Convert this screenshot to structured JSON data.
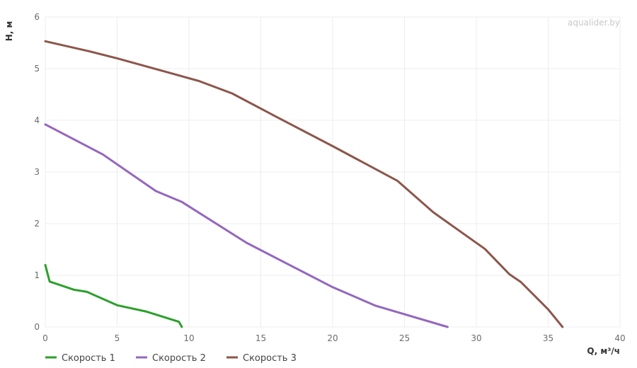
{
  "watermark": "aqualider.by",
  "chart_data": {
    "type": "line",
    "xlabel": "Q, м³/ч",
    "ylabel": "H, м",
    "xlim": [
      0,
      40
    ],
    "ylim": [
      0,
      6
    ],
    "xticks": [
      "0",
      "5",
      "10",
      "15",
      "20",
      "25",
      "30",
      "35",
      "40"
    ],
    "yticks": [
      "0",
      "1",
      "2",
      "3",
      "4",
      "5",
      "6"
    ],
    "grid": true,
    "legend": "bottom-left",
    "series": [
      {
        "name": "Скорость 1",
        "color": "#2ca02c",
        "points": [
          [
            0,
            1.2
          ],
          [
            0.3,
            0.88
          ],
          [
            2,
            0.72
          ],
          [
            2.9,
            0.68
          ],
          [
            5,
            0.42
          ],
          [
            7,
            0.3
          ],
          [
            9.3,
            0.1
          ],
          [
            9.5,
            0
          ]
        ]
      },
      {
        "name": "Скорость 2",
        "color": "#9467bd",
        "points": [
          [
            0,
            3.92
          ],
          [
            4,
            3.34
          ],
          [
            7.7,
            2.63
          ],
          [
            9.5,
            2.42
          ],
          [
            14,
            1.63
          ],
          [
            20,
            0.77
          ],
          [
            23,
            0.41
          ],
          [
            28,
            0
          ]
        ]
      },
      {
        "name": "Скорость 3",
        "color": "#8c564b",
        "points": [
          [
            0,
            5.53
          ],
          [
            3,
            5.34
          ],
          [
            5,
            5.2
          ],
          [
            10.7,
            4.76
          ],
          [
            13,
            4.52
          ],
          [
            16,
            4.08
          ],
          [
            20,
            3.5
          ],
          [
            24.5,
            2.83
          ],
          [
            27,
            2.22
          ],
          [
            30.6,
            1.51
          ],
          [
            32.3,
            1.02
          ],
          [
            33.1,
            0.87
          ],
          [
            35,
            0.34
          ],
          [
            36,
            0
          ]
        ]
      }
    ]
  }
}
